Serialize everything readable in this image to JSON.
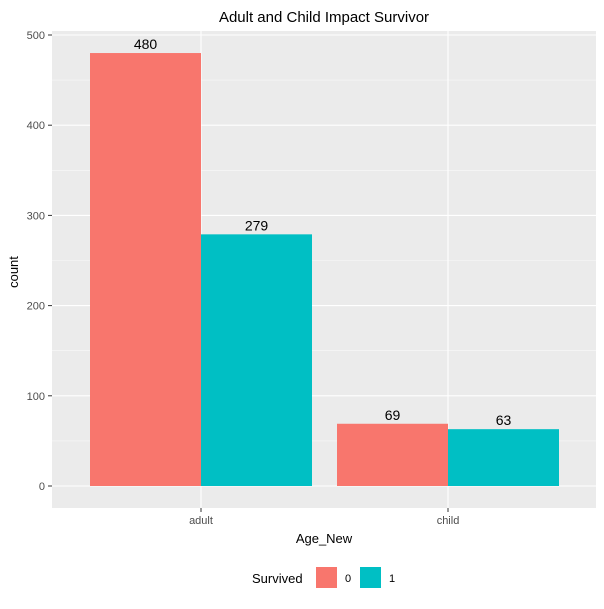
{
  "chart_data": {
    "type": "bar",
    "title": "Adult and Child  Impact Survivor",
    "xlabel": "Age_New",
    "ylabel": "count",
    "categories": [
      "adult",
      "child"
    ],
    "series": [
      {
        "name": "0",
        "values": [
          480,
          69
        ],
        "color": "#F8766D"
      },
      {
        "name": "1",
        "values": [
          279,
          63
        ],
        "color": "#00BFC4"
      }
    ],
    "ylim": [
      0,
      500
    ],
    "yticks": [
      0,
      100,
      200,
      300,
      400,
      500
    ],
    "legend": {
      "title": "Survived",
      "placement": "bottom"
    },
    "grid": true,
    "panel_background": "#EBEBEB",
    "grid_color": "#FFFFFF"
  }
}
